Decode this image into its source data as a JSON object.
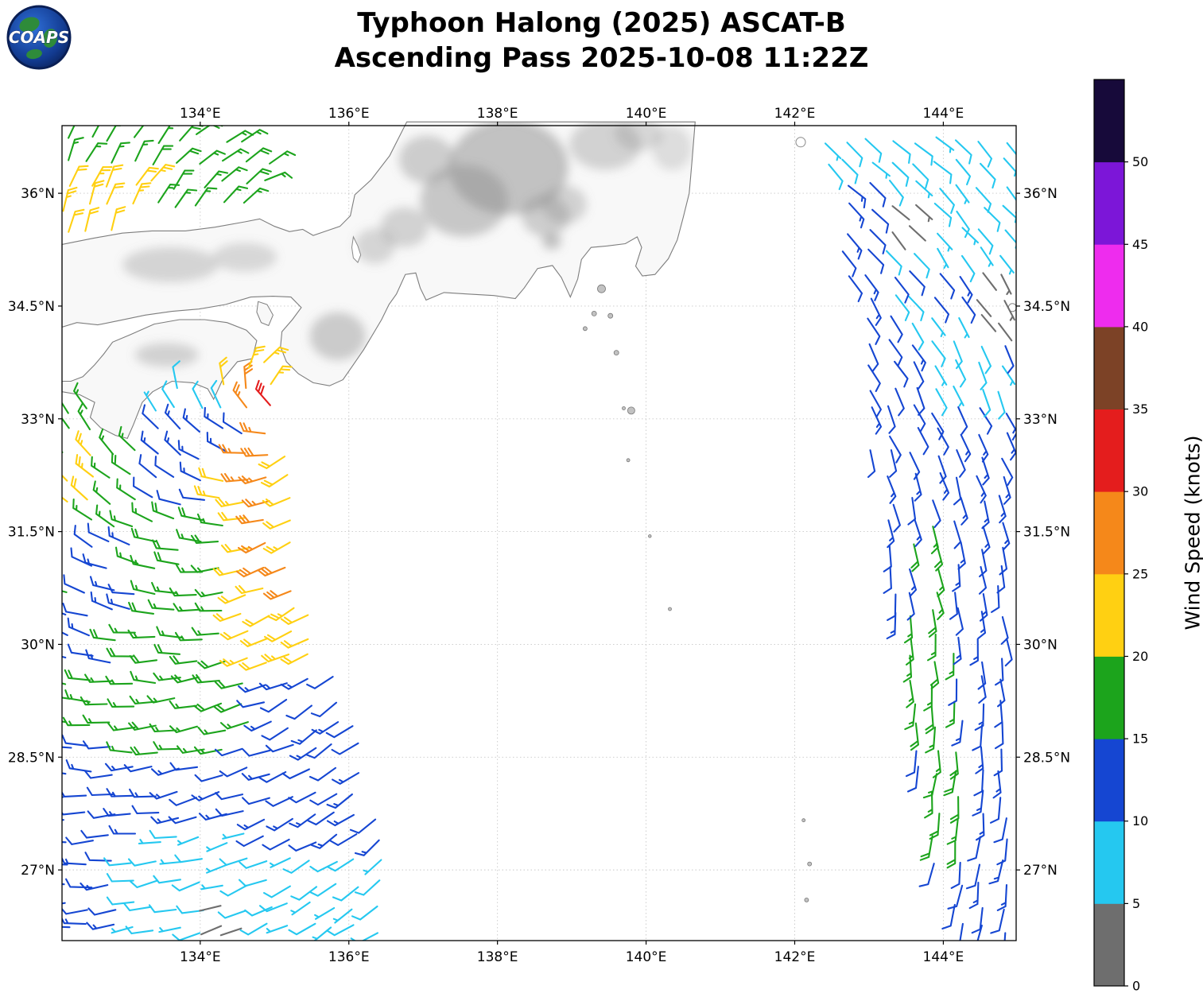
{
  "title": {
    "line1": "Typhoon Halong (2025) ASCAT-B",
    "line2": "Ascending Pass 2025-10-08 11:22Z"
  },
  "logo": {
    "text": "COAPS"
  },
  "map": {
    "x_ticks": [
      {
        "lon": 134,
        "label": "134°E"
      },
      {
        "lon": 136,
        "label": "136°E"
      },
      {
        "lon": 138,
        "label": "138°E"
      },
      {
        "lon": 140,
        "label": "140°E"
      },
      {
        "lon": 142,
        "label": "142°E"
      },
      {
        "lon": 144,
        "label": "144°E"
      }
    ],
    "y_ticks": [
      {
        "lat": 36,
        "label": "36°N"
      },
      {
        "lat": 34.5,
        "label": "34.5°N"
      },
      {
        "lat": 33,
        "label": "33°N"
      },
      {
        "lat": 31.5,
        "label": "31.5°N"
      },
      {
        "lat": 30,
        "label": "30°N"
      },
      {
        "lat": 28.5,
        "label": "28.5°N"
      },
      {
        "lat": 27,
        "label": "27°N"
      }
    ]
  },
  "colorbar": {
    "label": "Wind Speed (knots)",
    "min": 0,
    "max": 55,
    "ticks": [
      0,
      5,
      10,
      15,
      20,
      25,
      30,
      35,
      40,
      45,
      50
    ],
    "colors": [
      {
        "range": [
          0,
          5
        ],
        "hex": "#6e6e6e"
      },
      {
        "range": [
          5,
          10
        ],
        "hex": "#25c8f0"
      },
      {
        "range": [
          10,
          15
        ],
        "hex": "#1546d2"
      },
      {
        "range": [
          15,
          20
        ],
        "hex": "#1ca41c"
      },
      {
        "range": [
          20,
          25
        ],
        "hex": "#ffd012"
      },
      {
        "range": [
          25,
          30
        ],
        "hex": "#f5881a"
      },
      {
        "range": [
          30,
          35
        ],
        "hex": "#e41d1d"
      },
      {
        "range": [
          35,
          40
        ],
        "hex": "#7c4226"
      },
      {
        "range": [
          40,
          45
        ],
        "hex": "#ee2cee"
      },
      {
        "range": [
          45,
          50
        ],
        "hex": "#7c16d8"
      },
      {
        "range": [
          50,
          55
        ],
        "hex": "#170a3a"
      }
    ]
  },
  "chart_data": {
    "type": "wind_barb_map",
    "lon_min": 132.14,
    "lon_max": 144.98,
    "lat_min": 26.06,
    "lat_max": 36.9,
    "grid_spacing_deg": 0.3,
    "center": {
      "lon": 135.1,
      "lat": 33.25
    },
    "inflow_deg": 25,
    "regions": [
      {
        "name": "sj-yellow-west",
        "lon": [
          132.1,
          133.35
        ],
        "lat": [
          35.28,
          36.38
        ],
        "kt": 22
      },
      {
        "name": "sj-green-top",
        "lon": [
          132.1,
          134.95
        ],
        "lat": [
          36.05,
          36.95
        ],
        "kt": 17
      },
      {
        "name": "sj-green-east",
        "lon": [
          133.35,
          134.6
        ],
        "lat": [
          35.7,
          36.05
        ],
        "kt": 17
      },
      {
        "name": "muroto-green",
        "lon": [
          133.45,
          134.1
        ],
        "lat": [
          33.42,
          33.75
        ],
        "kt": 17
      },
      {
        "name": "tosa-cyan",
        "lon": [
          132.75,
          134.28
        ],
        "lat": [
          33.08,
          33.52
        ],
        "kt": 8
      },
      {
        "name": "tosa-blue",
        "lon": [
          133.3,
          134.6
        ],
        "lat": [
          32.5,
          33.1
        ],
        "kt": 12
      },
      {
        "name": "bungo-green",
        "lon": [
          132.1,
          132.78
        ],
        "lat": [
          32.55,
          33.45
        ],
        "kt": 17
      },
      {
        "name": "core-red",
        "lon": [
          134.78,
          135.02
        ],
        "lat": [
          33.0,
          33.34
        ],
        "kt": 32
      },
      {
        "name": "core-orange",
        "lon": [
          134.52,
          135.02
        ],
        "lat": [
          32.78,
          33.46
        ],
        "kt": 27
      },
      {
        "name": "core-yellow-n",
        "lon": [
          134.45,
          134.98
        ],
        "lat": [
          33.46,
          33.82
        ],
        "kt": 22
      },
      {
        "name": "core-yellow-w",
        "lon": [
          134.08,
          134.52
        ],
        "lat": [
          32.88,
          33.72
        ],
        "kt": 22
      },
      {
        "name": "band-orange-1",
        "lon": [
          134.6,
          135.05
        ],
        "lat": [
          31.9,
          32.78
        ],
        "kt": 27
      },
      {
        "name": "band-orange-2",
        "lon": [
          134.72,
          135.2
        ],
        "lat": [
          31.0,
          31.9
        ],
        "kt": 27
      },
      {
        "name": "band-orange-3",
        "lon": [
          134.88,
          135.32
        ],
        "lat": [
          30.55,
          31.0
        ],
        "kt": 27
      },
      {
        "name": "band-yellow-1",
        "lon": [
          134.22,
          135.28
        ],
        "lat": [
          31.8,
          32.95
        ],
        "kt": 22
      },
      {
        "name": "band-yellow-2",
        "lon": [
          134.38,
          135.45
        ],
        "lat": [
          30.7,
          31.8
        ],
        "kt": 22
      },
      {
        "name": "band-yellow-3",
        "lon": [
          134.52,
          135.62
        ],
        "lat": [
          29.7,
          30.7
        ],
        "kt": 22
      },
      {
        "name": "west-yellow-edge",
        "lon": [
          132.1,
          132.58
        ],
        "lat": [
          31.85,
          32.95
        ],
        "kt": 22
      },
      {
        "name": "west-green",
        "lon": [
          132.4,
          133.28
        ],
        "lat": [
          31.55,
          33.1
        ],
        "kt": 17
      },
      {
        "name": "mid-blue",
        "lon": [
          133.2,
          134.3
        ],
        "lat": [
          31.85,
          32.95
        ],
        "kt": 12
      },
      {
        "name": "mid-green-2",
        "lon": [
          133.1,
          134.5
        ],
        "lat": [
          30.9,
          31.9
        ],
        "kt": 17
      },
      {
        "name": "west-blue-2",
        "lon": [
          132.25,
          133.2
        ],
        "lat": [
          30.35,
          31.6
        ],
        "kt": 12
      },
      {
        "name": "west-blue-3",
        "lon": [
          132.1,
          132.8
        ],
        "lat": [
          29.55,
          30.55
        ],
        "kt": 12
      },
      {
        "name": "green-main",
        "lon": [
          132.1,
          134.72
        ],
        "lat": [
          28.85,
          31.0
        ],
        "kt": 17
      },
      {
        "name": "green-tongue",
        "lon": [
          132.98,
          134.5
        ],
        "lat": [
          28.45,
          28.9
        ],
        "kt": 17
      },
      {
        "name": "blue-right-band",
        "lon": [
          134.55,
          136.3
        ],
        "lat": [
          28.85,
          29.75
        ],
        "kt": 12
      },
      {
        "name": "gray-south",
        "lon": [
          134.12,
          134.6
        ],
        "lat": [
          26.22,
          26.75
        ],
        "kt": 3
      },
      {
        "name": "cyan-pocket",
        "lon": [
          133.3,
          134.7
        ],
        "lat": [
          27.0,
          27.62
        ],
        "kt": 8
      },
      {
        "name": "cyan-south",
        "lon": [
          132.9,
          136.5
        ],
        "lat": [
          26.1,
          27.32
        ],
        "kt": 8
      },
      {
        "name": "blue-south-west",
        "lon": [
          132.1,
          132.95
        ],
        "lat": [
          26.1,
          27.45
        ],
        "kt": 12
      },
      {
        "name": "blue-main-south",
        "lon": [
          132.1,
          136.5
        ],
        "lat": [
          27.3,
          29.0
        ],
        "kt": 12
      },
      {
        "name": "r-gray-1",
        "lon": [
          143.22,
          143.88
        ],
        "lat": [
          35.3,
          36.05
        ],
        "kt": 3
      },
      {
        "name": "r-gray-2",
        "lon": [
          144.4,
          144.98
        ],
        "lat": [
          34.25,
          35.15
        ],
        "kt": 3
      },
      {
        "name": "r-blue-edge",
        "lon": [
          142.3,
          143.18
        ],
        "lat": [
          34.45,
          36.25
        ],
        "kt": 12
      },
      {
        "name": "r-cyan-top",
        "lon": [
          142.3,
          145.0
        ],
        "lat": [
          35.1,
          36.95
        ],
        "kt": 8
      },
      {
        "name": "r-cyan-mid",
        "lon": [
          143.8,
          144.8
        ],
        "lat": [
          33.25,
          34.6
        ],
        "kt": 8
      },
      {
        "name": "r-cyan-notch",
        "lon": [
          143.3,
          143.85
        ],
        "lat": [
          34.1,
          34.65
        ],
        "kt": 8
      },
      {
        "name": "r-green-band",
        "lon": [
          143.55,
          144.15
        ],
        "lat": [
          28.6,
          31.6
        ],
        "kt": 17
      },
      {
        "name": "r-green-low",
        "lon": [
          143.82,
          144.4
        ],
        "lat": [
          27.25,
          28.6
        ],
        "kt": 17
      },
      {
        "name": "r-blue-main",
        "lon": [
          142.3,
          145.0
        ],
        "lat": [
          26.1,
          36.95
        ],
        "kt": 12
      }
    ],
    "coast": {
      "honshu": [
        [
          132.14,
          35.32
        ],
        [
          132.55,
          35.4
        ],
        [
          132.95,
          35.47
        ],
        [
          133.35,
          35.5
        ],
        [
          133.8,
          35.5
        ],
        [
          134.2,
          35.55
        ],
        [
          134.6,
          35.62
        ],
        [
          134.8,
          35.66
        ],
        [
          135.0,
          35.56
        ],
        [
          135.2,
          35.49
        ],
        [
          135.38,
          35.52
        ],
        [
          135.52,
          35.44
        ],
        [
          135.7,
          35.5
        ],
        [
          135.88,
          35.56
        ],
        [
          136.02,
          35.7
        ],
        [
          136.08,
          35.98
        ],
        [
          136.3,
          36.18
        ],
        [
          136.55,
          36.5
        ],
        [
          136.78,
          36.95
        ],
        [
          140.66,
          36.95
        ],
        [
          140.62,
          36.45
        ],
        [
          140.58,
          36.0
        ],
        [
          140.5,
          35.68
        ],
        [
          140.42,
          35.38
        ],
        [
          140.3,
          35.13
        ],
        [
          140.12,
          34.92
        ],
        [
          139.95,
          34.9
        ],
        [
          139.86,
          35.03
        ],
        [
          139.94,
          35.28
        ],
        [
          139.88,
          35.42
        ],
        [
          139.72,
          35.33
        ],
        [
          139.48,
          35.3
        ],
        [
          139.26,
          35.28
        ],
        [
          139.13,
          35.12
        ],
        [
          139.08,
          34.86
        ],
        [
          138.98,
          34.62
        ],
        [
          138.86,
          34.88
        ],
        [
          138.74,
          35.04
        ],
        [
          138.54,
          35.0
        ],
        [
          138.36,
          34.74
        ],
        [
          138.24,
          34.6
        ],
        [
          137.95,
          34.64
        ],
        [
          137.6,
          34.66
        ],
        [
          137.28,
          34.68
        ],
        [
          137.04,
          34.58
        ],
        [
          136.96,
          34.74
        ],
        [
          136.9,
          34.94
        ],
        [
          136.76,
          34.92
        ],
        [
          136.64,
          34.66
        ],
        [
          136.54,
          34.52
        ],
        [
          136.44,
          34.32
        ],
        [
          136.32,
          34.12
        ],
        [
          136.2,
          33.92
        ],
        [
          136.06,
          33.72
        ],
        [
          135.92,
          33.52
        ],
        [
          135.74,
          33.44
        ],
        [
          135.52,
          33.48
        ],
        [
          135.32,
          33.6
        ],
        [
          135.16,
          33.76
        ],
        [
          135.08,
          33.96
        ],
        [
          135.1,
          34.16
        ],
        [
          135.24,
          34.32
        ],
        [
          135.36,
          34.48
        ],
        [
          135.22,
          34.62
        ],
        [
          134.98,
          34.63
        ],
        [
          134.68,
          34.62
        ],
        [
          134.34,
          34.52
        ],
        [
          133.98,
          34.46
        ],
        [
          133.62,
          34.43
        ],
        [
          133.26,
          34.38
        ],
        [
          132.92,
          34.31
        ],
        [
          132.62,
          34.25
        ],
        [
          132.34,
          34.28
        ],
        [
          132.14,
          34.22
        ]
      ],
      "shikoku": [
        [
          132.14,
          33.36
        ],
        [
          132.38,
          33.32
        ],
        [
          132.58,
          33.22
        ],
        [
          132.52,
          33.02
        ],
        [
          132.66,
          32.88
        ],
        [
          132.86,
          32.78
        ],
        [
          133.02,
          32.74
        ],
        [
          133.1,
          32.92
        ],
        [
          133.22,
          33.22
        ],
        [
          133.36,
          33.36
        ],
        [
          133.62,
          33.5
        ],
        [
          133.9,
          33.48
        ],
        [
          134.1,
          33.4
        ],
        [
          134.18,
          33.26
        ],
        [
          134.3,
          33.52
        ],
        [
          134.5,
          33.76
        ],
        [
          134.7,
          33.8
        ],
        [
          134.76,
          34.04
        ],
        [
          134.62,
          34.18
        ],
        [
          134.36,
          34.28
        ],
        [
          134.06,
          34.32
        ],
        [
          133.72,
          34.32
        ],
        [
          133.38,
          34.26
        ],
        [
          133.06,
          34.12
        ],
        [
          132.82,
          34.02
        ],
        [
          132.7,
          33.86
        ],
        [
          132.58,
          33.72
        ],
        [
          132.42,
          33.56
        ],
        [
          132.26,
          33.5
        ],
        [
          132.14,
          33.5
        ]
      ],
      "awaji": [
        [
          134.78,
          34.56
        ],
        [
          134.9,
          34.52
        ],
        [
          134.98,
          34.38
        ],
        [
          134.92,
          34.24
        ],
        [
          134.82,
          34.28
        ],
        [
          134.76,
          34.42
        ]
      ],
      "lake": [
        [
          136.06,
          35.42
        ],
        [
          136.12,
          35.3
        ],
        [
          136.16,
          35.18
        ],
        [
          136.12,
          35.08
        ],
        [
          136.06,
          35.14
        ],
        [
          136.04,
          35.28
        ]
      ]
    },
    "islands": [
      [
        139.4,
        34.73,
        5
      ],
      [
        139.3,
        34.4,
        3
      ],
      [
        139.52,
        34.37,
        3
      ],
      [
        139.18,
        34.2,
        2.5
      ],
      [
        139.6,
        33.88,
        3
      ],
      [
        139.8,
        33.11,
        4.5
      ],
      [
        139.7,
        33.14,
        2
      ],
      [
        139.76,
        32.45,
        2
      ],
      [
        140.05,
        31.44,
        1.8
      ],
      [
        140.32,
        30.47,
        2
      ],
      [
        142.12,
        27.66,
        2
      ],
      [
        142.2,
        27.08,
        2.5
      ],
      [
        142.16,
        26.6,
        2.5
      ]
    ],
    "island_outlines": [
      [
        142.08,
        36.68,
        6
      ],
      [
        144.93,
        34.48,
        5
      ]
    ],
    "terrain": [
      [
        138.15,
        36.35,
        75,
        60,
        0.5
      ],
      [
        137.55,
        35.9,
        55,
        45,
        0.45
      ],
      [
        138.65,
        35.7,
        30,
        26,
        0.4
      ],
      [
        139.45,
        36.65,
        45,
        32,
        0.35
      ],
      [
        137.05,
        36.45,
        35,
        30,
        0.4
      ],
      [
        136.75,
        35.55,
        30,
        25,
        0.35
      ],
      [
        133.6,
        35.05,
        60,
        22,
        0.33
      ],
      [
        134.6,
        35.15,
        40,
        18,
        0.3
      ],
      [
        135.85,
        34.1,
        35,
        30,
        0.42
      ],
      [
        136.35,
        35.3,
        25,
        22,
        0.32
      ],
      [
        133.55,
        33.85,
        40,
        15,
        0.35
      ],
      [
        139.9,
        36.8,
        30,
        22,
        0.3
      ],
      [
        138.9,
        35.85,
        28,
        24,
        0.35
      ],
      [
        140.35,
        36.6,
        25,
        28,
        0.25
      ],
      [
        138.73,
        35.36,
        12,
        10,
        0.5
      ]
    ]
  }
}
